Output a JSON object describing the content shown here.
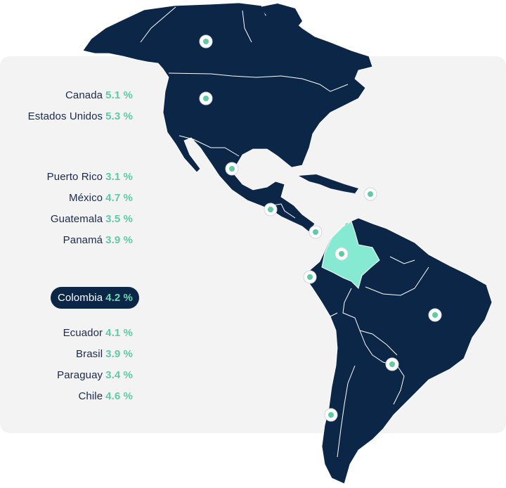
{
  "colors": {
    "land": "#0c2647",
    "highlight": "#86ead3",
    "accent": "#5fcaa6",
    "panel": "#f3f3f4"
  },
  "countries": [
    {
      "name": "Canada",
      "value": "5.1 %"
    },
    {
      "name": "Estados Unidos",
      "value": "5.3 %"
    },
    {
      "name": "Puerto Rico",
      "value": "3.1 %"
    },
    {
      "name": "México",
      "value": "4.7 %"
    },
    {
      "name": "Guatemala",
      "value": "3.5 %"
    },
    {
      "name": "Panamá",
      "value": "3.9 %"
    },
    {
      "name": "Colombia",
      "value": "4.2 %",
      "selected": true
    },
    {
      "name": "Ecuador",
      "value": "4.1 %"
    },
    {
      "name": "Brasil",
      "value": "3.9 %"
    },
    {
      "name": "Paraguay",
      "value": "3.4 %"
    },
    {
      "name": "Chile",
      "value": "4.6 %"
    }
  ]
}
